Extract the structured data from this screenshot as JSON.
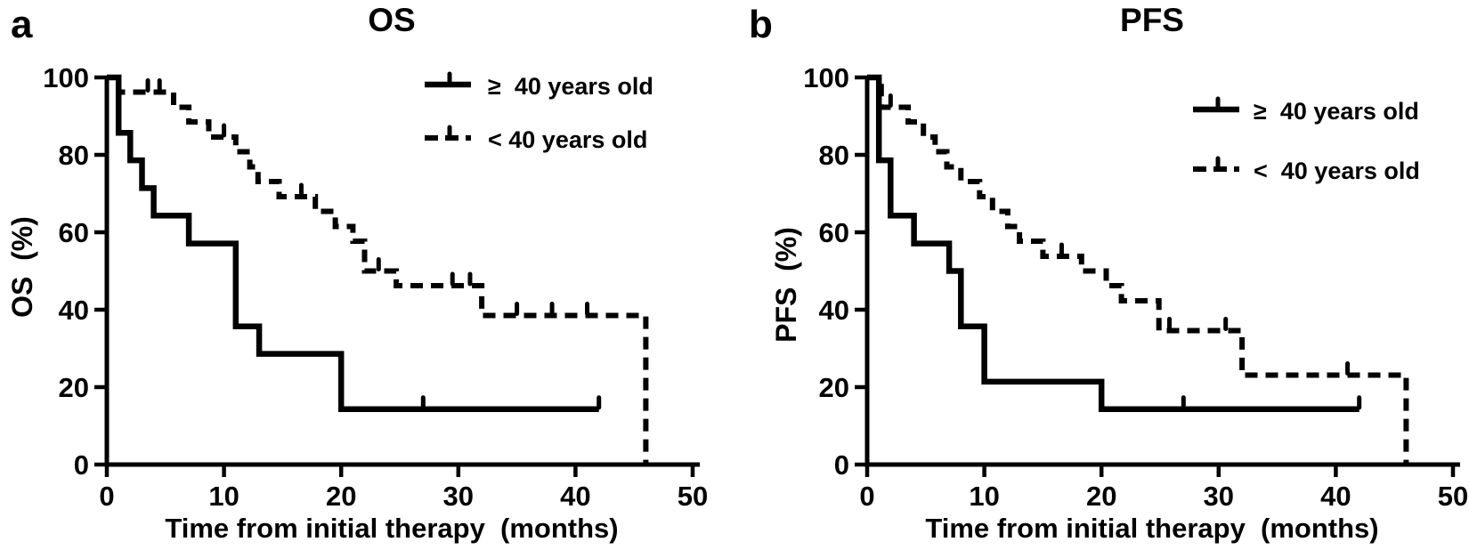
{
  "colors": {
    "ink": "#000000",
    "background": "#ffffff"
  },
  "chart_data": [
    {
      "panel_label": "a",
      "title": "OS",
      "type": "line",
      "subtype": "kaplan-meier-step",
      "xlabel": "Time from initial therapy  (months)",
      "ylabel": "OS  (%)",
      "xlim": [
        0,
        50
      ],
      "ylim": [
        0,
        100
      ],
      "xticks": [
        0,
        10,
        20,
        30,
        40,
        50
      ],
      "yticks": [
        0,
        20,
        40,
        60,
        80,
        100
      ],
      "grid": false,
      "legend_position": "upper right",
      "series": [
        {
          "name": "≥  40 years old",
          "style": "solid",
          "points": [
            [
              0,
              100
            ],
            [
              1,
              100
            ],
            [
              1,
              85.7
            ],
            [
              2,
              85.7
            ],
            [
              2,
              78.6
            ],
            [
              3,
              78.6
            ],
            [
              3,
              71.4
            ],
            [
              4,
              71.4
            ],
            [
              4,
              64.3
            ],
            [
              7,
              64.3
            ],
            [
              7,
              57.1
            ],
            [
              11,
              57.1
            ],
            [
              11,
              35.7
            ],
            [
              13,
              35.7
            ],
            [
              13,
              28.6
            ],
            [
              20,
              28.6
            ],
            [
              20,
              14.3
            ],
            [
              42,
              14.3
            ]
          ],
          "censor_marks": [
            [
              27,
              14.3
            ],
            [
              42,
              14.3
            ]
          ]
        },
        {
          "name": "< 40 years old",
          "style": "dashed",
          "points": [
            [
              0,
              100
            ],
            [
              1,
              100
            ],
            [
              1,
              96.2
            ],
            [
              5.7,
              96.2
            ],
            [
              5.7,
              92.3
            ],
            [
              7,
              92.3
            ],
            [
              7,
              88.5
            ],
            [
              8.7,
              88.5
            ],
            [
              8.7,
              84.6
            ],
            [
              11,
              84.6
            ],
            [
              11,
              80.8
            ],
            [
              12.2,
              80.8
            ],
            [
              12.2,
              76.9
            ],
            [
              12.9,
              76.9
            ],
            [
              12.9,
              73.1
            ],
            [
              14.7,
              73.1
            ],
            [
              14.7,
              69.2
            ],
            [
              17.8,
              69.2
            ],
            [
              17.8,
              65.4
            ],
            [
              19.5,
              65.4
            ],
            [
              19.5,
              61.5
            ],
            [
              21,
              61.5
            ],
            [
              21,
              57.7
            ],
            [
              22,
              57.7
            ],
            [
              22,
              50
            ],
            [
              24.7,
              50
            ],
            [
              24.7,
              46.2
            ],
            [
              32,
              46.2
            ],
            [
              32,
              38.5
            ],
            [
              46,
              38.5
            ],
            [
              46,
              0
            ]
          ],
          "censor_marks": [
            [
              3.5,
              96.2
            ],
            [
              4.5,
              96.2
            ],
            [
              10,
              84.6
            ],
            [
              16.6,
              69.2
            ],
            [
              23.2,
              50
            ],
            [
              29.5,
              46.2
            ],
            [
              31,
              46.2
            ],
            [
              35,
              38.5
            ],
            [
              38,
              38.5
            ],
            [
              41,
              38.5
            ]
          ]
        }
      ]
    },
    {
      "panel_label": "b",
      "title": "PFS",
      "type": "line",
      "subtype": "kaplan-meier-step",
      "xlabel": "Time from initial therapy  (months)",
      "ylabel": "PFS  (%)",
      "xlim": [
        0,
        50
      ],
      "ylim": [
        0,
        100
      ],
      "xticks": [
        0,
        10,
        20,
        30,
        40,
        50
      ],
      "yticks": [
        0,
        20,
        40,
        60,
        80,
        100
      ],
      "grid": false,
      "legend_position": "upper right",
      "series": [
        {
          "name": "≥  40 years old",
          "style": "solid",
          "points": [
            [
              0,
              100
            ],
            [
              1,
              100
            ],
            [
              1,
              78.6
            ],
            [
              2,
              78.6
            ],
            [
              2,
              64.3
            ],
            [
              4,
              64.3
            ],
            [
              4,
              57.1
            ],
            [
              7,
              57.1
            ],
            [
              7,
              50
            ],
            [
              8,
              50
            ],
            [
              8,
              35.7
            ],
            [
              10,
              35.7
            ],
            [
              10,
              21.4
            ],
            [
              20,
              21.4
            ],
            [
              20,
              14.3
            ],
            [
              42,
              14.3
            ]
          ],
          "censor_marks": [
            [
              27,
              14.3
            ],
            [
              42,
              14.3
            ]
          ]
        },
        {
          "name": "<  40 years old",
          "style": "dashed",
          "points": [
            [
              0,
              100
            ],
            [
              1.2,
              100
            ],
            [
              1.2,
              92.3
            ],
            [
              3.5,
              92.3
            ],
            [
              3.5,
              88.5
            ],
            [
              4.8,
              88.5
            ],
            [
              4.8,
              84.6
            ],
            [
              5.8,
              84.6
            ],
            [
              5.8,
              80.8
            ],
            [
              6.8,
              80.8
            ],
            [
              6.8,
              76.9
            ],
            [
              8,
              76.9
            ],
            [
              8,
              73.1
            ],
            [
              9.6,
              73.1
            ],
            [
              9.6,
              69.2
            ],
            [
              10.7,
              69.2
            ],
            [
              10.7,
              65.4
            ],
            [
              12,
              65.4
            ],
            [
              12,
              61.5
            ],
            [
              13,
              61.5
            ],
            [
              13,
              57.7
            ],
            [
              15,
              57.7
            ],
            [
              15,
              53.8
            ],
            [
              18.3,
              53.8
            ],
            [
              18.3,
              50
            ],
            [
              20.4,
              50
            ],
            [
              20.4,
              46.2
            ],
            [
              21.7,
              46.2
            ],
            [
              21.7,
              42.3
            ],
            [
              24.9,
              42.3
            ],
            [
              24.9,
              34.6
            ],
            [
              32,
              34.6
            ],
            [
              32,
              23.1
            ],
            [
              46,
              23.1
            ],
            [
              46,
              0
            ]
          ],
          "censor_marks": [
            [
              2,
              92.3
            ],
            [
              16.6,
              53.8
            ],
            [
              25.8,
              34.6
            ],
            [
              30.6,
              34.6
            ],
            [
              41,
              23.1
            ]
          ]
        }
      ]
    }
  ]
}
